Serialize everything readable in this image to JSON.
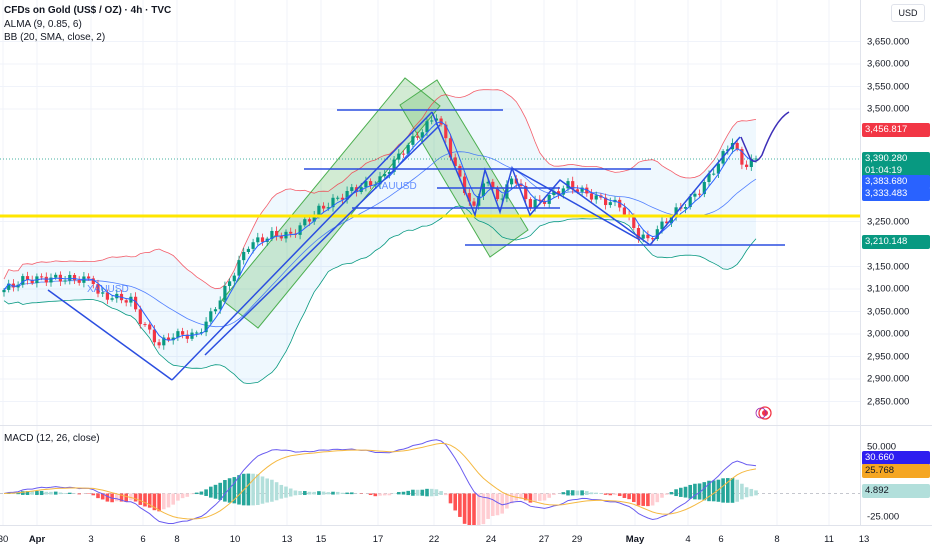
{
  "header": {
    "title": "CFDs on Gold (US$ / OZ) · 4h · TVC",
    "indicators": [
      "ALMA (9, 0.85, 6)",
      "BB (20, SMA, close, 2)"
    ],
    "macd_label": "MACD (12, 26, close)"
  },
  "currency": "USD",
  "colors": {
    "up": "#089981",
    "down": "#f23645",
    "bb_upper": "#f23645",
    "bb_lower": "#089981",
    "bb_basis": "#2962ff",
    "macd": "#6a5cf0",
    "signal": "#f5b942",
    "support": "#ffe600",
    "drawing": "#2b4ee0",
    "channel": "#4caf50"
  },
  "chart_data": {
    "type": "candlestick",
    "timeframe": "4h",
    "price_path": [
      [
        0,
        3098
      ],
      [
        4,
        3120
      ],
      [
        10,
        3124
      ],
      [
        19,
        3120
      ],
      [
        20,
        3087
      ],
      [
        27,
        3075
      ],
      [
        29,
        3031
      ],
      [
        33,
        2976
      ],
      [
        36,
        2998
      ],
      [
        41,
        2998
      ],
      [
        44,
        3042
      ],
      [
        47,
        3098
      ],
      [
        52,
        3198
      ],
      [
        57,
        3220
      ],
      [
        61,
        3220
      ],
      [
        67,
        3276
      ],
      [
        74,
        3320
      ],
      [
        80,
        3342
      ],
      [
        85,
        3409
      ],
      [
        90,
        3464
      ],
      [
        92,
        3487
      ],
      [
        94,
        3431
      ],
      [
        97,
        3342
      ],
      [
        100,
        3276
      ],
      [
        102,
        3342
      ],
      [
        106,
        3298
      ],
      [
        108,
        3353
      ],
      [
        112,
        3287
      ],
      [
        115,
        3298
      ],
      [
        120,
        3331
      ],
      [
        127,
        3298
      ],
      [
        131,
        3287
      ],
      [
        135,
        3220
      ],
      [
        137,
        3209
      ],
      [
        142,
        3264
      ],
      [
        146,
        3298
      ],
      [
        148,
        3320
      ],
      [
        151,
        3364
      ],
      [
        155,
        3431
      ],
      [
        157,
        3375
      ],
      [
        160,
        3390
      ]
    ],
    "price_axis": {
      "ticks": [
        3650,
        3600,
        3550,
        3500,
        3250,
        3150,
        3100,
        3050,
        3000,
        2950,
        2900,
        2850
      ],
      "tick_labels": [
        "3,650.000",
        "3,600.000",
        "3,550.000",
        "3,500.000",
        "3,250.000",
        "3,150.000",
        "3,100.000",
        "3,050.000",
        "3,000.000",
        "2,950.000",
        "2,900.000",
        "2,850.000"
      ]
    },
    "time_axis": [
      "30",
      "Apr",
      "3",
      "6",
      "8",
      "10",
      "13",
      "15",
      "17",
      "22",
      "24",
      "27",
      "29",
      "May",
      "4",
      "6",
      "8",
      "11",
      "13"
    ],
    "price_labels": {
      "bb_upper": "3,456.817",
      "last": "3,390.280",
      "countdown": "01:04:19",
      "alma": "3,383.680",
      "bb_basis": "3,333.483",
      "bb_lower": "3,210.148"
    },
    "support_level": 3264,
    "macd_axis": {
      "ticks": [
        "50.000",
        "-25.000"
      ],
      "macd": "30.660",
      "signal": "25.768",
      "histogram": "4.892"
    },
    "annotations": [
      "XAUUSD",
      "XAUUSD"
    ]
  }
}
